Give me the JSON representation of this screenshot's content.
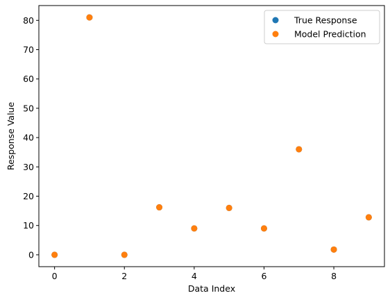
{
  "chart_data": {
    "type": "scatter",
    "title": "",
    "xlabel": "Data Index",
    "ylabel": "Response Value",
    "xlim": [
      -0.45,
      9.45
    ],
    "ylim": [
      -4.05,
      85.05
    ],
    "xticks": [
      0,
      2,
      4,
      6,
      8
    ],
    "yticks": [
      0,
      10,
      20,
      30,
      40,
      50,
      60,
      70,
      80
    ],
    "grid": false,
    "legend_position": "top-right",
    "series": [
      {
        "name": "True Response",
        "color": "#1f77b4",
        "x": [
          0,
          1,
          2,
          3,
          4,
          5,
          6,
          7,
          8,
          9
        ],
        "y": [
          0,
          81,
          0,
          16.2,
          9,
          16,
          9,
          36,
          1.8,
          12.8
        ]
      },
      {
        "name": "Model Prediction",
        "color": "#ff7f0e",
        "x": [
          0,
          1,
          2,
          3,
          4,
          5,
          6,
          7,
          8,
          9
        ],
        "y": [
          0,
          81,
          0,
          16.2,
          9,
          16,
          9,
          36,
          1.8,
          12.8
        ]
      }
    ]
  }
}
